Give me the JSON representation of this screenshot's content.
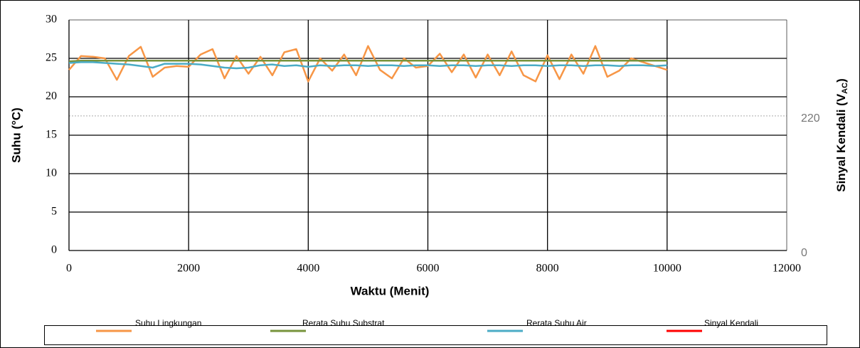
{
  "chart_data": {
    "type": "line",
    "xlabel": "Waktu (Menit)",
    "ylabel": "Suhu (°C)",
    "y2label": [
      "Sinyal Kendali (V",
      "AC",
      ")"
    ],
    "x": [
      0,
      200,
      400,
      600,
      800,
      1000,
      1200,
      1400,
      1600,
      1800,
      2000,
      2200,
      2400,
      2600,
      2800,
      3000,
      3200,
      3400,
      3600,
      3800,
      4000,
      4200,
      4400,
      4600,
      4800,
      5000,
      5200,
      5400,
      5600,
      5800,
      6000,
      6200,
      6400,
      6600,
      6800,
      7000,
      7200,
      7400,
      7600,
      7800,
      8000,
      8200,
      8400,
      8600,
      8800,
      9000,
      9200,
      9400,
      9600,
      9800,
      10000
    ],
    "xlim": [
      0,
      12000
    ],
    "xticks": [
      0,
      2000,
      4000,
      6000,
      8000,
      10000,
      12000
    ],
    "ylim": [
      0,
      30
    ],
    "yticks": [
      0,
      5,
      10,
      15,
      20,
      25,
      30
    ],
    "y2lim": [
      0,
      377
    ],
    "y2ticks": [
      0,
      220
    ],
    "grid": true,
    "legend": "bottom",
    "series": [
      {
        "name": "Suhu Lingkungan",
        "color": "#f79646",
        "values": [
          23.5,
          25.3,
          25.2,
          25.0,
          22.2,
          25.3,
          26.5,
          22.6,
          23.8,
          24.0,
          23.9,
          25.5,
          26.2,
          22.4,
          25.3,
          23.0,
          25.2,
          22.8,
          25.8,
          26.2,
          22.0,
          25.0,
          23.4,
          25.5,
          22.8,
          26.6,
          23.5,
          22.4,
          25.0,
          23.8,
          24.0,
          25.6,
          23.2,
          25.5,
          22.5,
          25.5,
          22.8,
          25.9,
          22.8,
          22.0,
          25.4,
          22.3,
          25.5,
          23.0,
          26.6,
          22.6,
          23.4,
          25.0,
          24.5,
          24.0,
          23.5
        ]
      },
      {
        "name": "Rerata Suhu Substrat",
        "color": "#77933c",
        "values": [
          24.6,
          24.7,
          24.7,
          24.7,
          24.7,
          24.7,
          24.7,
          24.7,
          24.7,
          24.7,
          24.7,
          24.7,
          24.7,
          24.7,
          24.7,
          24.7,
          24.7,
          24.7,
          24.7,
          24.7,
          24.7,
          24.7,
          24.7,
          24.7,
          24.7,
          24.7,
          24.7,
          24.7,
          24.7,
          24.7,
          24.7,
          24.7,
          24.7,
          24.7,
          24.7,
          24.7,
          24.7,
          24.7,
          24.7,
          24.7,
          24.7,
          24.7,
          24.7,
          24.7,
          24.7,
          24.7,
          24.7,
          24.7,
          24.7,
          24.7,
          24.7
        ]
      },
      {
        "name": "Rerata Suhu Air",
        "color": "#4bacc6",
        "values": [
          24.4,
          24.5,
          24.5,
          24.4,
          24.3,
          24.2,
          24.0,
          23.8,
          24.3,
          24.3,
          24.3,
          24.2,
          24.0,
          23.8,
          23.7,
          23.8,
          24.1,
          24.2,
          24.0,
          24.1,
          23.9,
          24.1,
          24.0,
          24.1,
          24.1,
          24.0,
          24.1,
          24.1,
          24.0,
          24.1,
          24.1,
          24.0,
          24.1,
          24.1,
          24.0,
          24.1,
          24.1,
          24.0,
          24.1,
          24.1,
          24.0,
          24.1,
          24.1,
          24.0,
          24.1,
          24.1,
          24.0,
          24.1,
          24.1,
          24.0,
          24.1
        ]
      },
      {
        "name": "Sinyal Kendali",
        "color": "#ff0000",
        "axis": "y2",
        "values": [
          null,
          null,
          null,
          null,
          null,
          null,
          null,
          null,
          null,
          null,
          null,
          null,
          null,
          null,
          null,
          null,
          null,
          null,
          null,
          null,
          null,
          null,
          null,
          null,
          null,
          null,
          null,
          null,
          null,
          null,
          null,
          null,
          null,
          null,
          null,
          null,
          null,
          null,
          null,
          null,
          null,
          null,
          null,
          null,
          null,
          null,
          null,
          null,
          null,
          null,
          null
        ]
      }
    ]
  }
}
